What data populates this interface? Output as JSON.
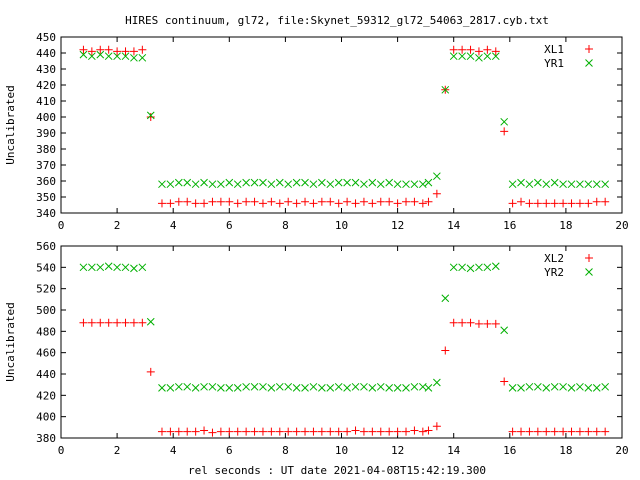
{
  "title": "HIRES continuum, gl72, file:Skynet_59312_gl72_54063_2817.cyb.txt",
  "xlabel": "rel seconds : UT date 2021-04-08T15:42:19.300",
  "colors": {
    "red_series": "#ff0000",
    "green_series": "#00b000",
    "axes": "#000000"
  },
  "chart_data": [
    {
      "type": "scatter",
      "ylabel": "Uncalibrated",
      "xlim": [
        0,
        20
      ],
      "ylim": [
        340,
        450
      ],
      "xticks": [
        0,
        2,
        4,
        6,
        8,
        10,
        12,
        14,
        16,
        18,
        20
      ],
      "yticks": [
        340,
        350,
        360,
        370,
        380,
        390,
        400,
        410,
        420,
        430,
        440,
        450
      ],
      "legend_position": "top-right",
      "series": [
        {
          "name": "XL1",
          "marker": "plus",
          "color": "#ff0000",
          "x": [
            0.8,
            1.1,
            1.4,
            1.7,
            2.0,
            2.3,
            2.6,
            2.9,
            3.2,
            3.6,
            3.9,
            4.2,
            4.5,
            4.8,
            5.1,
            5.4,
            5.7,
            6.0,
            6.3,
            6.6,
            6.9,
            7.2,
            7.5,
            7.8,
            8.1,
            8.4,
            8.7,
            9.0,
            9.3,
            9.6,
            9.9,
            10.2,
            10.5,
            10.8,
            11.1,
            11.4,
            11.7,
            12.0,
            12.3,
            12.6,
            12.9,
            13.1,
            13.4,
            13.7,
            14.0,
            14.3,
            14.6,
            14.9,
            15.2,
            15.5,
            15.8,
            16.1,
            16.4,
            16.7,
            17.0,
            17.3,
            17.6,
            17.9,
            18.2,
            18.5,
            18.8,
            19.1,
            19.4
          ],
          "y": [
            442,
            441,
            442,
            442,
            441,
            441,
            441,
            442,
            400,
            346,
            346,
            347,
            347,
            346,
            346,
            347,
            347,
            347,
            346,
            347,
            347,
            346,
            347,
            346,
            347,
            346,
            347,
            346,
            347,
            347,
            346,
            347,
            346,
            347,
            346,
            347,
            347,
            346,
            347,
            347,
            346,
            347,
            352,
            417,
            442,
            442,
            442,
            441,
            442,
            441,
            391,
            346,
            347,
            346,
            346,
            346,
            346,
            346,
            346,
            346,
            346,
            347,
            347
          ]
        },
        {
          "name": "YR1",
          "marker": "cross",
          "color": "#00b000",
          "x": [
            0.8,
            1.1,
            1.4,
            1.7,
            2.0,
            2.3,
            2.6,
            2.9,
            3.2,
            3.6,
            3.9,
            4.2,
            4.5,
            4.8,
            5.1,
            5.4,
            5.7,
            6.0,
            6.3,
            6.6,
            6.9,
            7.2,
            7.5,
            7.8,
            8.1,
            8.4,
            8.7,
            9.0,
            9.3,
            9.6,
            9.9,
            10.2,
            10.5,
            10.8,
            11.1,
            11.4,
            11.7,
            12.0,
            12.3,
            12.6,
            12.9,
            13.1,
            13.4,
            13.7,
            14.0,
            14.3,
            14.6,
            14.9,
            15.2,
            15.5,
            15.8,
            16.1,
            16.4,
            16.7,
            17.0,
            17.3,
            17.6,
            17.9,
            18.2,
            18.5,
            18.8,
            19.1,
            19.4
          ],
          "y": [
            439,
            438,
            439,
            438,
            438,
            438,
            437,
            437,
            401,
            358,
            358,
            359,
            359,
            358,
            359,
            358,
            358,
            359,
            358,
            359,
            359,
            359,
            358,
            359,
            358,
            359,
            359,
            358,
            359,
            358,
            359,
            359,
            359,
            358,
            359,
            358,
            359,
            358,
            358,
            358,
            358,
            359,
            363,
            417,
            438,
            438,
            438,
            437,
            438,
            438,
            397,
            358,
            359,
            358,
            359,
            358,
            359,
            358,
            358,
            358,
            358,
            358,
            358
          ]
        }
      ]
    },
    {
      "type": "scatter",
      "ylabel": "Uncalibrated",
      "xlim": [
        0,
        20
      ],
      "ylim": [
        380,
        560
      ],
      "xticks": [
        0,
        2,
        4,
        6,
        8,
        10,
        12,
        14,
        16,
        18,
        20
      ],
      "yticks": [
        380,
        400,
        420,
        440,
        460,
        480,
        500,
        520,
        540,
        560
      ],
      "legend_position": "top-right",
      "series": [
        {
          "name": "XL2",
          "marker": "plus",
          "color": "#ff0000",
          "x": [
            0.8,
            1.1,
            1.4,
            1.7,
            2.0,
            2.3,
            2.6,
            2.9,
            3.2,
            3.6,
            3.9,
            4.2,
            4.5,
            4.8,
            5.1,
            5.4,
            5.7,
            6.0,
            6.3,
            6.6,
            6.9,
            7.2,
            7.5,
            7.8,
            8.1,
            8.4,
            8.7,
            9.0,
            9.3,
            9.6,
            9.9,
            10.2,
            10.5,
            10.8,
            11.1,
            11.4,
            11.7,
            12.0,
            12.3,
            12.6,
            12.9,
            13.1,
            13.4,
            13.7,
            14.0,
            14.3,
            14.6,
            14.9,
            15.2,
            15.5,
            15.8,
            16.1,
            16.4,
            16.7,
            17.0,
            17.3,
            17.6,
            17.9,
            18.2,
            18.5,
            18.8,
            19.1,
            19.4
          ],
          "y": [
            488,
            488,
            488,
            488,
            488,
            488,
            488,
            488,
            442,
            386,
            386,
            386,
            386,
            386,
            387,
            385,
            386,
            386,
            386,
            386,
            386,
            386,
            386,
            386,
            386,
            386,
            386,
            386,
            386,
            386,
            386,
            386,
            387,
            386,
            386,
            386,
            386,
            386,
            386,
            387,
            386,
            387,
            391,
            462,
            488,
            488,
            488,
            487,
            487,
            487,
            433,
            386,
            386,
            386,
            386,
            386,
            386,
            386,
            386,
            386,
            386,
            386,
            386
          ]
        },
        {
          "name": "YR2",
          "marker": "cross",
          "color": "#00b000",
          "x": [
            0.8,
            1.1,
            1.4,
            1.7,
            2.0,
            2.3,
            2.6,
            2.9,
            3.2,
            3.6,
            3.9,
            4.2,
            4.5,
            4.8,
            5.1,
            5.4,
            5.7,
            6.0,
            6.3,
            6.6,
            6.9,
            7.2,
            7.5,
            7.8,
            8.1,
            8.4,
            8.7,
            9.0,
            9.3,
            9.6,
            9.9,
            10.2,
            10.5,
            10.8,
            11.1,
            11.4,
            11.7,
            12.0,
            12.3,
            12.6,
            12.9,
            13.1,
            13.4,
            13.7,
            14.0,
            14.3,
            14.6,
            14.9,
            15.2,
            15.5,
            15.8,
            16.1,
            16.4,
            16.7,
            17.0,
            17.3,
            17.6,
            17.9,
            18.2,
            18.5,
            18.8,
            19.1,
            19.4
          ],
          "y": [
            540,
            540,
            540,
            541,
            540,
            540,
            539,
            540,
            489,
            427,
            427,
            428,
            428,
            427,
            428,
            428,
            427,
            427,
            427,
            428,
            428,
            428,
            427,
            428,
            428,
            427,
            427,
            428,
            427,
            427,
            428,
            427,
            428,
            428,
            427,
            428,
            427,
            427,
            427,
            428,
            428,
            427,
            432,
            511,
            540,
            540,
            539,
            540,
            540,
            541,
            481,
            427,
            427,
            428,
            428,
            427,
            428,
            428,
            427,
            428,
            427,
            427,
            428
          ]
        }
      ]
    }
  ]
}
